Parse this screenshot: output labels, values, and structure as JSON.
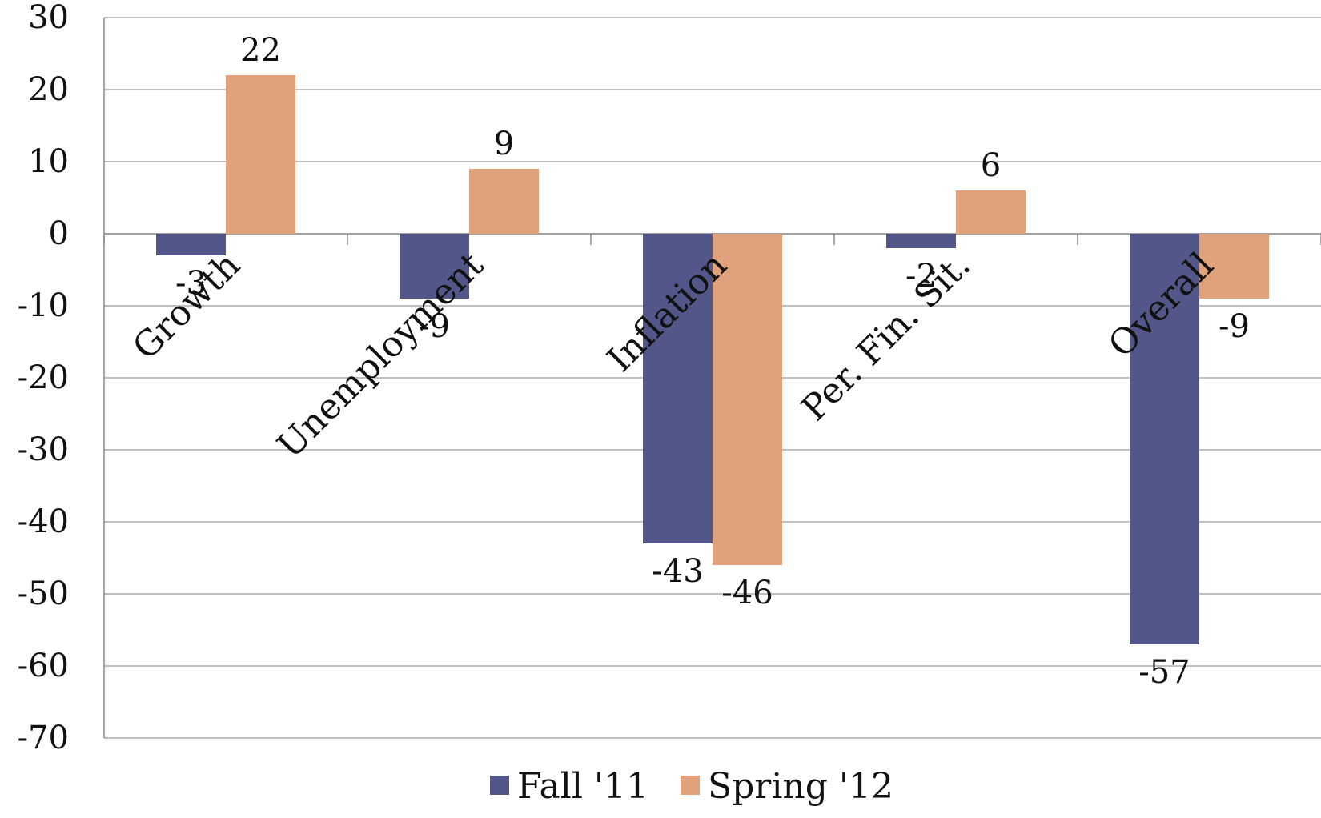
{
  "chart_data": {
    "type": "bar",
    "categories": [
      "Growth",
      "Unemployment",
      "Inflation",
      "Per. Fin. Sit.",
      "Overall"
    ],
    "series": [
      {
        "name": "Fall '11",
        "values": [
          -3,
          -9,
          -43,
          -2,
          -57
        ],
        "color": "#535689"
      },
      {
        "name": "Spring '12",
        "values": [
          22,
          9,
          -46,
          6,
          -9
        ],
        "color": "#e0a27c"
      }
    ],
    "data_labels": [
      [
        "-3",
        "-9",
        "-43",
        "-2",
        "-57"
      ],
      [
        "22",
        "9",
        "-46",
        "6",
        "-9"
      ]
    ],
    "ylim": [
      -70,
      30
    ],
    "yticks": [
      30,
      20,
      10,
      0,
      -10,
      -20,
      -30,
      -40,
      -50,
      -60,
      -70
    ],
    "grid": true,
    "legend_position": "bottom",
    "title": "",
    "xlabel": "",
    "ylabel": ""
  }
}
